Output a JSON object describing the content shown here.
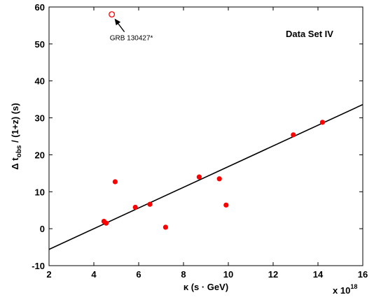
{
  "chart_data": {
    "type": "scatter",
    "title": "",
    "legend_text": "Data Set IV",
    "xlabel": "κ (s · GeV)",
    "xscale_label": "x 10",
    "xscale_exp": "18",
    "ylabel_parts": {
      "pre": "Δ t",
      "sub": "obs",
      "post": " / (1+z) (s)"
    },
    "xlim": [
      2,
      16
    ],
    "ylim": [
      -10,
      60
    ],
    "xticks": [
      2,
      4,
      6,
      8,
      10,
      12,
      14,
      16
    ],
    "yticks": [
      -10,
      0,
      10,
      20,
      30,
      40,
      50,
      60
    ],
    "grid": false,
    "colors": {
      "points": "#ff0000",
      "fit": "#000000",
      "axes": "#000000"
    },
    "points": [
      {
        "x": 4.45,
        "y": 2.0
      },
      {
        "x": 4.55,
        "y": 1.5
      },
      {
        "x": 4.95,
        "y": 12.7
      },
      {
        "x": 5.85,
        "y": 5.8
      },
      {
        "x": 6.5,
        "y": 6.6
      },
      {
        "x": 7.2,
        "y": 0.4
      },
      {
        "x": 8.7,
        "y": 14.0
      },
      {
        "x": 9.6,
        "y": 13.5
      },
      {
        "x": 9.9,
        "y": 6.4
      },
      {
        "x": 12.9,
        "y": 25.4
      },
      {
        "x": 14.2,
        "y": 28.8
      }
    ],
    "outlier": {
      "x": 4.8,
      "y": 58.0,
      "label": "GRB 130427*"
    },
    "fit_line": {
      "x": [
        2,
        16
      ],
      "y": [
        -5.6,
        33.6
      ]
    }
  }
}
